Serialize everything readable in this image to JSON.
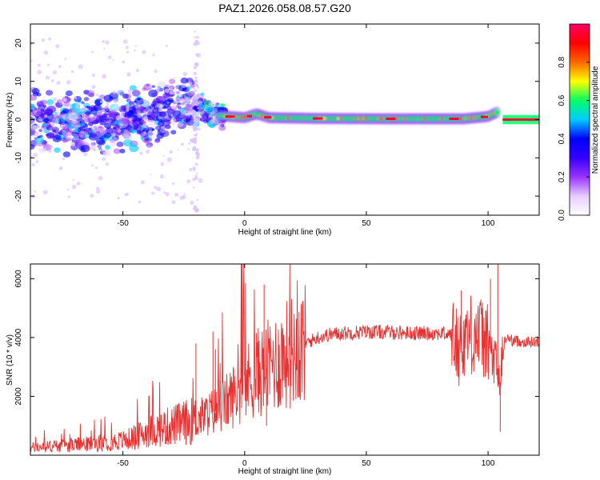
{
  "figure": {
    "title": "PAZ1.2026.058.08.57.G20"
  },
  "colorbar": {
    "label": "Normalized spectral amplitude",
    "ticks": [
      0.0,
      0.2,
      0.4,
      0.6,
      0.8
    ],
    "tick_labels": [
      "0.0",
      "0.2",
      "0.4",
      "0.6",
      "0.8"
    ],
    "range": [
      0,
      1
    ],
    "colormap": [
      "#ffffff",
      "#e6ccff",
      "#9933ff",
      "#3300ff",
      "#0000ff",
      "#00ccff",
      "#00ff66",
      "#ffff00",
      "#ff6600",
      "#ff0000",
      "#ff0066"
    ]
  },
  "chart_data": [
    {
      "type": "heatmap",
      "title": "PAZ1.2026.058.08.57.G20",
      "xlabel": "Height of straight line (km)",
      "ylabel": "Frequency (Hz)",
      "xlim": [
        -88,
        121
      ],
      "ylim": [
        -25,
        25
      ],
      "xticks": [
        -50,
        0,
        50,
        100
      ],
      "xtick_labels": [
        "-50",
        "0",
        "50",
        "100"
      ],
      "yticks": [
        -20,
        -10,
        0,
        10,
        20
      ],
      "ytick_labels": [
        "-20",
        "-10",
        "0",
        "10",
        "20"
      ],
      "grid": false,
      "description_points": {
        "center_frequency": [
          {
            "x": -85,
            "y": -1
          },
          {
            "x": -70,
            "y": -1
          },
          {
            "x": -60,
            "y": -1
          },
          {
            "x": -50,
            "y": -0.5
          },
          {
            "x": -40,
            "y": 1
          },
          {
            "x": -30,
            "y": 3
          },
          {
            "x": -24,
            "y": 4.5
          },
          {
            "x": -20,
            "y": 4
          },
          {
            "x": -15,
            "y": 2
          },
          {
            "x": -10,
            "y": 1
          },
          {
            "x": 0,
            "y": 0.5
          },
          {
            "x": 5,
            "y": 1.5
          },
          {
            "x": 10,
            "y": 0.5
          },
          {
            "x": 30,
            "y": 0.3
          },
          {
            "x": 60,
            "y": 0.2
          },
          {
            "x": 90,
            "y": 0.2
          },
          {
            "x": 100,
            "y": 0.8
          },
          {
            "x": 104,
            "y": 2
          },
          {
            "x": 108,
            "y": 0
          },
          {
            "x": 121,
            "y": 0
          }
        ]
      }
    },
    {
      "type": "line",
      "xlabel": "Height of straight line (km)",
      "ylabel": "SNR (10 * v/v)",
      "xlim": [
        -88,
        121
      ],
      "ylim": [
        0,
        6500
      ],
      "xticks": [
        -50,
        0,
        50,
        100
      ],
      "xtick_labels": [
        "-50",
        "0",
        "50",
        "100"
      ],
      "yticks": [
        2000,
        4000,
        6000
      ],
      "ytick_labels": [
        "2000",
        "4000",
        "6000"
      ],
      "grid": false,
      "color": "#e83030",
      "x": [
        -88,
        -80,
        -70,
        -60,
        -50,
        -45,
        -40,
        -35,
        -30,
        -25,
        -20,
        -15,
        -10,
        -5,
        0,
        5,
        10,
        15,
        20,
        25,
        30,
        35,
        40,
        50,
        60,
        70,
        80,
        85,
        88,
        90,
        95,
        100,
        103,
        105,
        107,
        110,
        115,
        121
      ],
      "values": [
        250,
        300,
        350,
        400,
        500,
        600,
        800,
        900,
        1000,
        1100,
        1200,
        1400,
        1600,
        2000,
        2400,
        2800,
        3000,
        3300,
        3600,
        3800,
        4000,
        4100,
        4150,
        4200,
        4180,
        4150,
        4150,
        4100,
        3600,
        4000,
        4200,
        3800,
        3000,
        2500,
        4000,
        3900,
        3850,
        3850
      ],
      "spikes": [
        {
          "x": -20,
          "y": 3800
        },
        {
          "x": -13,
          "y": 4200
        },
        {
          "x": -12,
          "y": 3600
        },
        {
          "x": 8,
          "y": 5800
        },
        {
          "x": 9,
          "y": 1000
        },
        {
          "x": 88,
          "y": 2600
        },
        {
          "x": 89,
          "y": 5600
        },
        {
          "x": 101,
          "y": 6000
        },
        {
          "x": 104,
          "y": 6500
        },
        {
          "x": 105,
          "y": 800
        }
      ]
    }
  ]
}
